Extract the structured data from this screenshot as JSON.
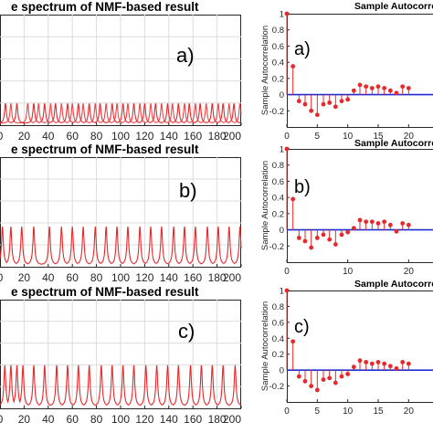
{
  "chart_data": [
    {
      "type": "line",
      "title": "e spectrum of NMF-based result",
      "panel_label": "a)",
      "xlim": [
        0,
        200
      ],
      "x_ticks": [
        "0",
        "20",
        "40",
        "60",
        "80",
        "100",
        "120",
        "140",
        "160",
        "180",
        "200"
      ],
      "grid": true,
      "series": [
        {
          "color": "#e8282b",
          "peak_x": [
            4.5,
            14,
            28,
            37,
            46,
            56,
            65,
            74,
            83,
            93,
            102,
            111,
            120,
            129,
            139,
            148,
            157,
            166,
            176,
            185,
            194
          ]
        },
        {
          "color": "#e8282b",
          "peak_x": [
            9,
            23,
            32,
            42,
            51,
            60,
            69,
            79,
            88,
            97,
            106,
            116,
            125,
            134,
            143,
            153,
            162,
            171,
            181,
            190,
            199
          ]
        }
      ],
      "peak_height_fraction": 0.18
    },
    {
      "type": "line",
      "title": "e spectrum of NMF-based result",
      "panel_label": "b)",
      "xlim": [
        0,
        200
      ],
      "x_ticks": [
        "0",
        "20",
        "40",
        "60",
        "80",
        "100",
        "120",
        "140",
        "160",
        "180",
        "200"
      ],
      "grid": true,
      "series": [
        {
          "color": "#e8282b",
          "peak_x": [
            2,
            9,
            18,
            28,
            41,
            51,
            60,
            69,
            79,
            88,
            97,
            106,
            116,
            125,
            134,
            144,
            153,
            162,
            172,
            181,
            190,
            199
          ]
        }
      ],
      "peak_height_fraction": 0.35
    },
    {
      "type": "line",
      "title": "e spectrum of NMF-based result",
      "panel_label": "c)",
      "xlim": [
        0,
        200
      ],
      "x_ticks": [
        "0",
        "20",
        "40",
        "60",
        "80",
        "100",
        "120",
        "140",
        "160",
        "180",
        "200"
      ],
      "grid": true,
      "series": [
        {
          "color": "#e8282b",
          "peak_x": [
            4,
            9,
            14,
            19,
            28,
            37,
            47,
            56,
            65,
            74,
            84,
            93,
            102,
            111,
            121,
            130,
            139,
            148,
            158,
            167,
            176,
            185,
            195
          ]
        }
      ],
      "peak_height_fraction": 0.38
    },
    {
      "type": "scatter",
      "title": "Sample Autocorrelation",
      "panel_label": "a)",
      "ylabel": "Sample Autocorrelation",
      "xlim": [
        0,
        24
      ],
      "ylim": [
        -0.4,
        1.0
      ],
      "x_ticks": [
        0,
        5,
        10,
        15,
        20
      ],
      "y_ticks": [
        "1",
        "0.8",
        "0.6",
        "0.4",
        "0.2",
        "0",
        "-0.2"
      ],
      "x": [
        0,
        1,
        2,
        3,
        4,
        5,
        6,
        7,
        8,
        9,
        10,
        11,
        12,
        13,
        14,
        15,
        16,
        17,
        18,
        19,
        20
      ],
      "y": [
        1.0,
        0.35,
        -0.08,
        -0.12,
        -0.2,
        -0.25,
        -0.12,
        -0.1,
        -0.15,
        -0.08,
        -0.06,
        0.05,
        0.12,
        0.1,
        0.08,
        0.1,
        0.08,
        0.05,
        0.02,
        0.1,
        0.08
      ],
      "baseline_color": "#1f2ed1",
      "stem_color": "#e8282b"
    },
    {
      "type": "scatter",
      "title": "Sample Autocorrelation",
      "panel_label": "b)",
      "ylabel": "Sample Autocorrelation",
      "xlim": [
        0,
        24
      ],
      "ylim": [
        -0.4,
        1.0
      ],
      "x_ticks": [
        0,
        10,
        20
      ],
      "y_ticks": [
        "1",
        "0.8",
        "0.6",
        "0.4",
        "0.2",
        "0",
        "-0.2"
      ],
      "x": [
        0,
        1,
        2,
        3,
        4,
        5,
        6,
        7,
        8,
        9,
        10,
        11,
        12,
        13,
        14,
        15,
        16,
        17,
        18,
        19,
        20
      ],
      "y": [
        1.0,
        0.38,
        -0.1,
        -0.14,
        -0.22,
        -0.1,
        -0.06,
        -0.12,
        -0.18,
        -0.06,
        -0.03,
        0.02,
        0.12,
        0.1,
        0.1,
        0.08,
        0.1,
        0.06,
        -0.02,
        0.08,
        0.06
      ],
      "baseline_color": "#1f2ed1",
      "stem_color": "#e8282b"
    },
    {
      "type": "scatter",
      "title": "Sample Autocorrelation",
      "panel_label": "c)",
      "ylabel": "Sample Autocorrelation",
      "xlim": [
        0,
        24
      ],
      "ylim": [
        -0.4,
        1.0
      ],
      "x_ticks": [
        0,
        5,
        10,
        15,
        20
      ],
      "y_ticks": [
        "1",
        "0.8",
        "0.6",
        "0.4",
        "0.2",
        "0",
        "-0.2"
      ],
      "x": [
        0,
        1,
        2,
        3,
        4,
        5,
        6,
        7,
        8,
        9,
        10,
        11,
        12,
        13,
        14,
        15,
        16,
        17,
        18,
        19,
        20
      ],
      "y": [
        1.0,
        0.36,
        -0.08,
        -0.14,
        -0.2,
        -0.25,
        -0.12,
        -0.1,
        -0.16,
        -0.08,
        -0.05,
        0.04,
        0.12,
        0.1,
        0.08,
        0.1,
        0.08,
        0.05,
        0.02,
        0.1,
        0.08
      ],
      "baseline_color": "#1f2ed1",
      "stem_color": "#e8282b"
    }
  ]
}
